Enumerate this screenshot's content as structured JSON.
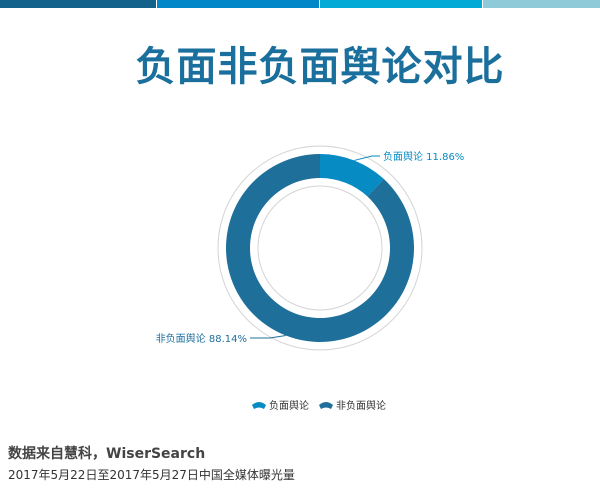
{
  "header": {
    "title": "负面非负面舆论对比",
    "bar_colors": [
      "#13628c",
      "#0288c8",
      "#04aad6",
      "#8ecad8"
    ]
  },
  "chart_data": {
    "type": "pie",
    "variant": "donut",
    "slices": [
      {
        "name": "负面舆论",
        "value": 11.86,
        "label": "负面舆论 11.86%",
        "color": "#068bc3"
      },
      {
        "name": "非负面舆论",
        "value": 88.14,
        "label": "非负面舆论 88.14%",
        "color": "#1f6f9b"
      }
    ],
    "legend": {
      "position": "bottom",
      "items": [
        "负面舆论",
        "非负面舆论"
      ]
    }
  },
  "footer": {
    "source": "数据来自慧科，WiserSearch",
    "note": "2017年5月22日至2017年5月27日中国全媒体曝光量"
  }
}
